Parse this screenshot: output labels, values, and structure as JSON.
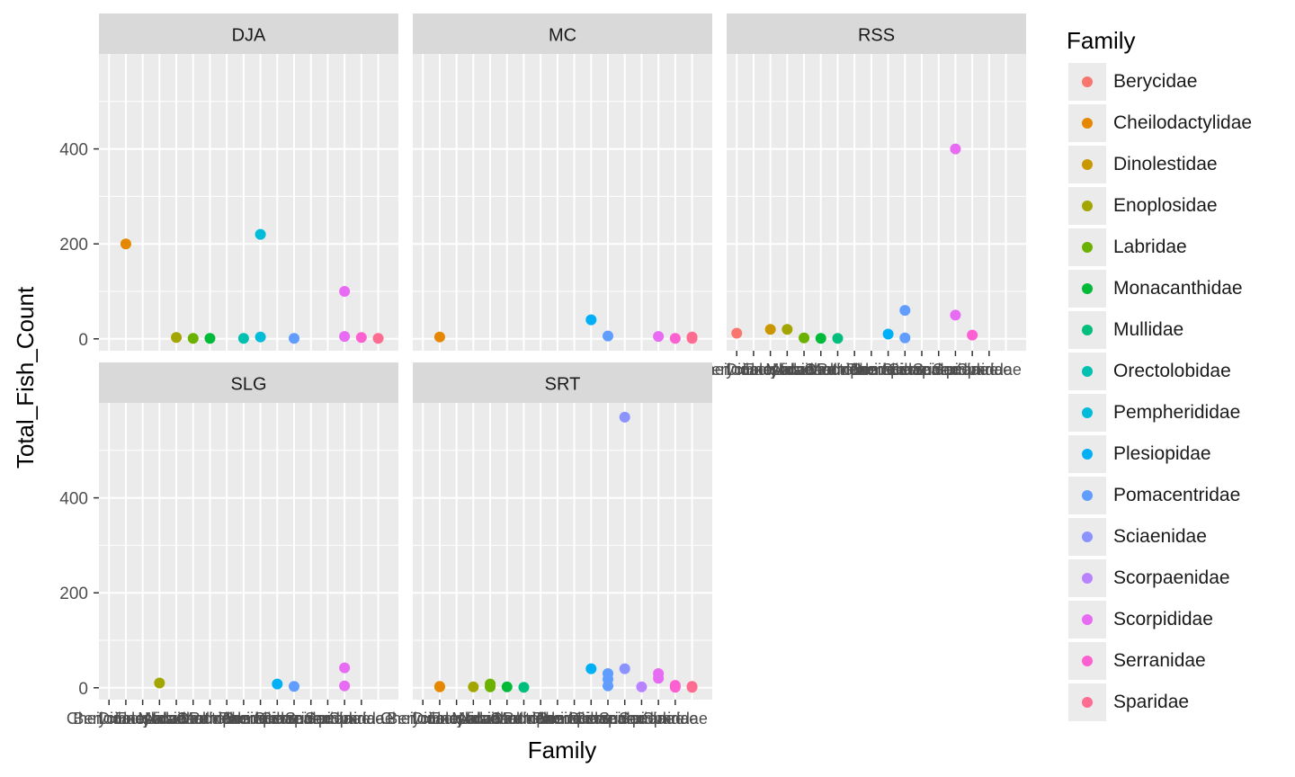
{
  "chart_data": {
    "type": "scatter",
    "xlabel": "Family",
    "ylabel": "Total_Fish_Count",
    "y_ticks": [
      0,
      200,
      400
    ],
    "ylim": [
      -25,
      600
    ],
    "grid": true,
    "legend_position": "right",
    "legend_title": "Family",
    "x_categories_count": 16,
    "families": [
      {
        "name": "Berycidae",
        "color": "#F8766D"
      },
      {
        "name": "Cheilodactylidae",
        "color": "#E58700"
      },
      {
        "name": "Dinolestidae",
        "color": "#C99800"
      },
      {
        "name": "Enoplosidae",
        "color": "#A3A500"
      },
      {
        "name": "Labridae",
        "color": "#6BB100"
      },
      {
        "name": "Monacanthidae",
        "color": "#00BA38"
      },
      {
        "name": "Mullidae",
        "color": "#00BF7D"
      },
      {
        "name": "Orectolobidae",
        "color": "#00C0AF"
      },
      {
        "name": "Pempherididae",
        "color": "#00BCD8"
      },
      {
        "name": "Plesiopidae",
        "color": "#00B0F6"
      },
      {
        "name": "Pomacentridae",
        "color": "#619CFF"
      },
      {
        "name": "Sciaenidae",
        "color": "#8B93FF"
      },
      {
        "name": "Scorpaenidae",
        "color": "#B983FF"
      },
      {
        "name": "Scorpididae",
        "color": "#E76BF3"
      },
      {
        "name": "Serranidae",
        "color": "#FD61D1"
      },
      {
        "name": "Sparidae",
        "color": "#FF6C91"
      }
    ],
    "panels": [
      {
        "name": "DJA",
        "points": [
          {
            "x": 2,
            "y": 200,
            "c": 1
          },
          {
            "x": 5,
            "y": 3,
            "c": 3
          },
          {
            "x": 6,
            "y": 1,
            "c": 4
          },
          {
            "x": 7,
            "y": 1,
            "c": 5
          },
          {
            "x": 9,
            "y": 1,
            "c": 7
          },
          {
            "x": 10,
            "y": 220,
            "c": 8
          },
          {
            "x": 10,
            "y": 4,
            "c": 8
          },
          {
            "x": 12,
            "y": 1,
            "c": 10
          },
          {
            "x": 15,
            "y": 100,
            "c": 13
          },
          {
            "x": 15,
            "y": 5,
            "c": 13
          },
          {
            "x": 16,
            "y": 3,
            "c": 14
          },
          {
            "x": 17,
            "y": 1,
            "c": 15
          }
        ]
      },
      {
        "name": "MC",
        "points": [
          {
            "x": 2,
            "y": 4,
            "c": 1
          },
          {
            "x": 11,
            "y": 40,
            "c": 9
          },
          {
            "x": 12,
            "y": 6,
            "c": 10
          },
          {
            "x": 15,
            "y": 5,
            "c": 13
          },
          {
            "x": 16,
            "y": 1,
            "c": 14
          },
          {
            "x": 17,
            "y": 4,
            "c": 15
          },
          {
            "x": 17,
            "y": 1,
            "c": 15
          }
        ]
      },
      {
        "name": "RSS",
        "points": [
          {
            "x": 1,
            "y": 12,
            "c": 0
          },
          {
            "x": 3,
            "y": 20,
            "c": 2
          },
          {
            "x": 4,
            "y": 20,
            "c": 3
          },
          {
            "x": 5,
            "y": 2,
            "c": 4
          },
          {
            "x": 6,
            "y": 1,
            "c": 5
          },
          {
            "x": 7,
            "y": 1,
            "c": 6
          },
          {
            "x": 10,
            "y": 10,
            "c": 9
          },
          {
            "x": 11,
            "y": 60,
            "c": 10
          },
          {
            "x": 11,
            "y": 2,
            "c": 10
          },
          {
            "x": 14,
            "y": 400,
            "c": 13
          },
          {
            "x": 14,
            "y": 50,
            "c": 13
          },
          {
            "x": 15,
            "y": 8,
            "c": 14
          }
        ]
      },
      {
        "name": "SLG",
        "points": [
          {
            "x": 4,
            "y": 10,
            "c": 3
          },
          {
            "x": 11,
            "y": 8,
            "c": 9
          },
          {
            "x": 12,
            "y": 3,
            "c": 10
          },
          {
            "x": 15,
            "y": 42,
            "c": 13
          },
          {
            "x": 15,
            "y": 4,
            "c": 13
          }
        ]
      },
      {
        "name": "SRT",
        "points": [
          {
            "x": 2,
            "y": 3,
            "c": 1
          },
          {
            "x": 2,
            "y": 2,
            "c": 1
          },
          {
            "x": 4,
            "y": 2,
            "c": 3
          },
          {
            "x": 5,
            "y": 8,
            "c": 4
          },
          {
            "x": 5,
            "y": 2,
            "c": 4
          },
          {
            "x": 6,
            "y": 2,
            "c": 5
          },
          {
            "x": 7,
            "y": 1,
            "c": 6
          },
          {
            "x": 11,
            "y": 40,
            "c": 9
          },
          {
            "x": 12,
            "y": 30,
            "c": 10
          },
          {
            "x": 12,
            "y": 18,
            "c": 10
          },
          {
            "x": 12,
            "y": 4,
            "c": 10
          },
          {
            "x": 13,
            "y": 570,
            "c": 11
          },
          {
            "x": 13,
            "y": 40,
            "c": 11
          },
          {
            "x": 14,
            "y": 2,
            "c": 12
          },
          {
            "x": 15,
            "y": 30,
            "c": 13
          },
          {
            "x": 15,
            "y": 20,
            "c": 13
          },
          {
            "x": 16,
            "y": 5,
            "c": 14
          },
          {
            "x": 16,
            "y": 1,
            "c": 14
          },
          {
            "x": 17,
            "y": 3,
            "c": 15
          },
          {
            "x": 17,
            "y": 1,
            "c": 15
          }
        ]
      }
    ]
  }
}
